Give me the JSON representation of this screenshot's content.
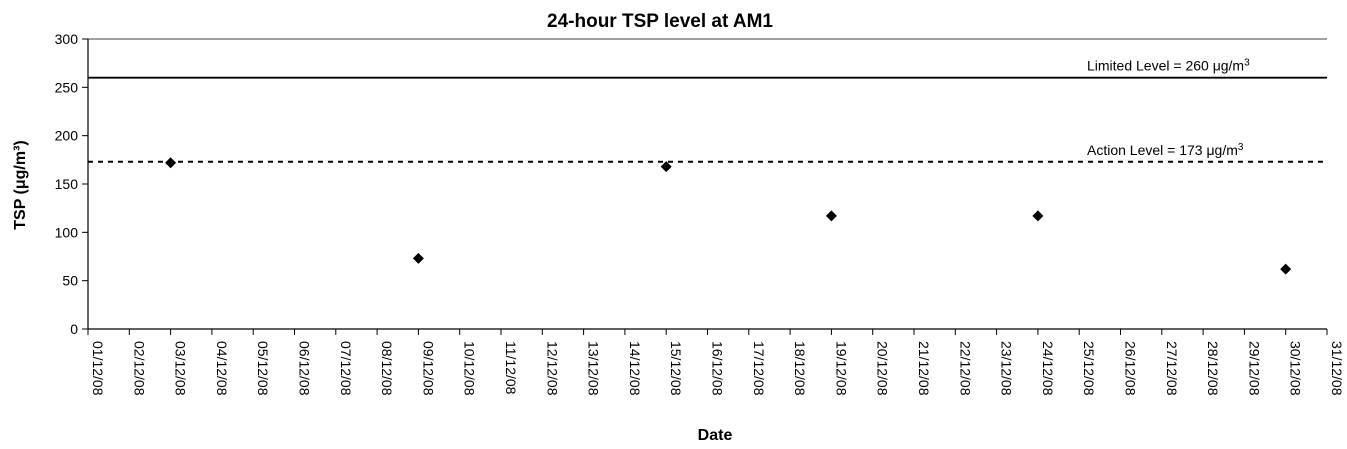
{
  "chart_data": {
    "type": "scatter",
    "title": "24-hour TSP level at AM1",
    "xlabel": "Date",
    "ylabel": "TSP (μg/m³)",
    "ylim": [
      0,
      300
    ],
    "yticks": [
      0,
      50,
      100,
      150,
      200,
      250,
      300
    ],
    "x_tick_labels": [
      "01/12/08",
      "02/12/08",
      "03/12/08",
      "04/12/08",
      "05/12/08",
      "06/12/08",
      "07/12/08",
      "08/12/08",
      "09/12/08",
      "10/12/08",
      "11/12/08",
      "12/12/08",
      "13/12/08",
      "14/12/08",
      "15/12/08",
      "16/12/08",
      "17/12/08",
      "18/12/08",
      "19/12/08",
      "20/12/08",
      "21/12/08",
      "22/12/08",
      "23/12/08",
      "24/12/08",
      "25/12/08",
      "26/12/08",
      "27/12/08",
      "28/12/08",
      "29/12/08",
      "30/12/08",
      "31/12/08"
    ],
    "points": [
      {
        "x": "03/12/08",
        "y": 172
      },
      {
        "x": "09/12/08",
        "y": 73
      },
      {
        "x": "15/12/08",
        "y": 168
      },
      {
        "x": "19/12/08",
        "y": 117
      },
      {
        "x": "24/12/08",
        "y": 117
      },
      {
        "x": "30/12/08",
        "y": 62
      }
    ],
    "reference_lines": [
      {
        "y": 260,
        "style": "solid",
        "label_prefix": "Limited Level = 260 ",
        "label_unit": "μg/m",
        "label_sup": "3"
      },
      {
        "y": 173,
        "style": "dashed",
        "label_prefix": "Action Level = 173 ",
        "label_unit": "μg/m",
        "label_sup": "3"
      }
    ],
    "grid": false,
    "legend": "none",
    "marker": "diamond",
    "colors": {
      "marker": "#000000",
      "line": "#000000"
    }
  }
}
